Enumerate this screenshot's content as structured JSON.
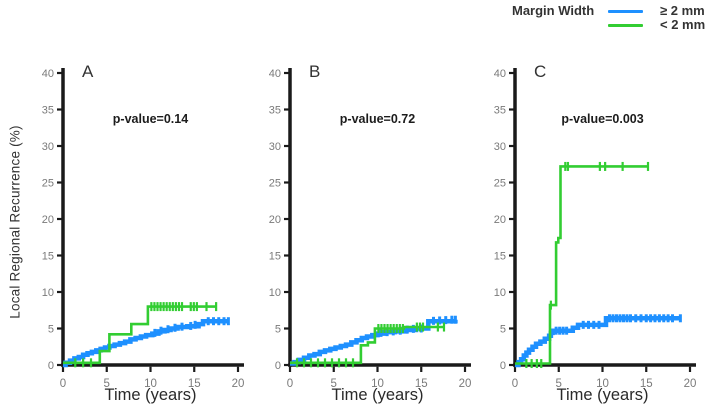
{
  "figure": {
    "background": "#ffffff"
  },
  "legend": {
    "title": "Margin Width",
    "items": [
      {
        "label": "≥ 2 mm",
        "color": "#1E90FF"
      },
      {
        "label": "< 2 mm",
        "color": "#32CD32"
      }
    ]
  },
  "axes": {
    "xlabel": "Time (years)",
    "ylabel": "Local Regional Recurrence (%)",
    "xlim": [
      0,
      20
    ],
    "ylim": [
      0,
      40
    ],
    "xticks": [
      0,
      5,
      10,
      15,
      20
    ],
    "yticks": [
      0,
      5,
      10,
      15,
      20,
      25,
      30,
      35,
      40
    ],
    "axis_color": "#1a1a1a",
    "tick_label_color": "#7a7a7a",
    "grid": false
  },
  "chart_data": [
    {
      "type": "line",
      "panel_label": "A",
      "p_value_label": "p-value=0.14",
      "series": [
        {
          "name": "≥ 2 mm",
          "color": "#1E90FF",
          "thickness": 4.5,
          "censor_half": 4,
          "censor_width": 3,
          "points": [
            [
              0,
              0
            ],
            [
              0.3,
              0.3
            ],
            [
              0.8,
              0.6
            ],
            [
              1.3,
              0.9
            ],
            [
              1.8,
              1.1
            ],
            [
              2.3,
              1.4
            ],
            [
              2.8,
              1.6
            ],
            [
              3.3,
              1.8
            ],
            [
              3.8,
              2.0
            ],
            [
              4.3,
              2.2
            ],
            [
              4.8,
              2.4
            ],
            [
              5.3,
              2.6
            ],
            [
              5.9,
              2.8
            ],
            [
              6.5,
              3.0
            ],
            [
              7.1,
              3.2
            ],
            [
              7.7,
              3.5
            ],
            [
              8.3,
              3.7
            ],
            [
              8.9,
              3.9
            ],
            [
              9.5,
              4.1
            ],
            [
              10.2,
              4.3
            ],
            [
              10.9,
              4.6
            ],
            [
              11.6,
              4.8
            ],
            [
              12.3,
              5.0
            ],
            [
              13.1,
              5.2
            ],
            [
              14.2,
              5.3
            ],
            [
              15.5,
              5.6
            ],
            [
              16.0,
              6.0
            ],
            [
              18.9,
              6.0
            ]
          ],
          "censors": [
            [
              10.5,
              4.4
            ],
            [
              11.2,
              4.7
            ],
            [
              12.0,
              4.9
            ],
            [
              12.8,
              5.1
            ],
            [
              13.6,
              5.25
            ],
            [
              14.6,
              5.35
            ],
            [
              15.1,
              5.5
            ],
            [
              16.6,
              6.0
            ],
            [
              17.2,
              6.0
            ],
            [
              17.8,
              6.0
            ],
            [
              18.4,
              6.0
            ],
            [
              18.9,
              6.0
            ]
          ]
        },
        {
          "name": "< 2 mm",
          "color": "#32CD32",
          "thickness": 2.6,
          "censor_half": 4.5,
          "censor_width": 2.2,
          "points": [
            [
              0,
              0.3
            ],
            [
              4.2,
              0.3
            ],
            [
              4.2,
              1.9
            ],
            [
              5.3,
              1.9
            ],
            [
              5.3,
              4.2
            ],
            [
              7.8,
              4.2
            ],
            [
              7.8,
              5.6
            ],
            [
              9.7,
              5.6
            ],
            [
              9.7,
              8.0
            ],
            [
              17.5,
              8.0
            ]
          ],
          "censors": [
            [
              1.4,
              0.3
            ],
            [
              2.3,
              0.3
            ],
            [
              3.2,
              0.3
            ],
            [
              10.1,
              8
            ],
            [
              10.45,
              8
            ],
            [
              10.8,
              8
            ],
            [
              11.15,
              8
            ],
            [
              11.5,
              8
            ],
            [
              11.85,
              8
            ],
            [
              12.2,
              8
            ],
            [
              12.55,
              8
            ],
            [
              12.9,
              8
            ],
            [
              13.25,
              8
            ],
            [
              13.6,
              8
            ],
            [
              14.6,
              8
            ],
            [
              14.95,
              8
            ],
            [
              15.3,
              8
            ],
            [
              16.4,
              8
            ],
            [
              17.5,
              8
            ]
          ]
        }
      ]
    },
    {
      "type": "line",
      "panel_label": "B",
      "p_value_label": "p-value=0.72",
      "series": [
        {
          "name": "≥ 2 mm",
          "color": "#1E90FF",
          "thickness": 4.5,
          "censor_half": 4,
          "censor_width": 3,
          "points": [
            [
              0,
              0.2
            ],
            [
              0.5,
              0.4
            ],
            [
              1.0,
              0.7
            ],
            [
              1.6,
              1.0
            ],
            [
              2.2,
              1.3
            ],
            [
              2.8,
              1.5
            ],
            [
              3.4,
              1.8
            ],
            [
              4.0,
              2.0
            ],
            [
              4.6,
              2.2
            ],
            [
              5.2,
              2.4
            ],
            [
              5.8,
              2.6
            ],
            [
              6.4,
              2.8
            ],
            [
              7.0,
              3.1
            ],
            [
              7.6,
              3.4
            ],
            [
              8.2,
              3.7
            ],
            [
              8.8,
              3.9
            ],
            [
              9.4,
              4.1
            ],
            [
              10.0,
              4.3
            ],
            [
              10.8,
              4.5
            ],
            [
              12.0,
              4.6
            ],
            [
              13.2,
              4.8
            ],
            [
              14.4,
              5.0
            ],
            [
              15.8,
              6.0
            ],
            [
              18.9,
              6.2
            ]
          ],
          "censors": [
            [
              10.4,
              4.4
            ],
            [
              11.1,
              4.5
            ],
            [
              11.8,
              4.6
            ],
            [
              12.6,
              4.7
            ],
            [
              13.4,
              4.85
            ],
            [
              14.1,
              4.95
            ],
            [
              15.0,
              5.0
            ],
            [
              16.4,
              6.05
            ],
            [
              17.1,
              6.1
            ],
            [
              17.8,
              6.15
            ],
            [
              18.5,
              6.2
            ],
            [
              18.9,
              6.2
            ]
          ]
        },
        {
          "name": "< 2 mm",
          "color": "#32CD32",
          "thickness": 2.6,
          "censor_half": 4.5,
          "censor_width": 2.2,
          "points": [
            [
              0,
              0.3
            ],
            [
              8.1,
              0.3
            ],
            [
              8.1,
              2.7
            ],
            [
              8.9,
              2.7
            ],
            [
              8.9,
              3.1
            ],
            [
              9.7,
              3.1
            ],
            [
              9.7,
              5.0
            ],
            [
              13.0,
              5.0
            ],
            [
              13.0,
              5.2
            ],
            [
              17.6,
              5.2
            ]
          ],
          "censors": [
            [
              0.8,
              0.3
            ],
            [
              1.6,
              0.3
            ],
            [
              2.4,
              0.3
            ],
            [
              3.2,
              0.3
            ],
            [
              4.0,
              0.3
            ],
            [
              4.8,
              0.3
            ],
            [
              5.6,
              0.3
            ],
            [
              6.4,
              0.3
            ],
            [
              7.2,
              0.3
            ],
            [
              10.1,
              5
            ],
            [
              10.45,
              5
            ],
            [
              10.8,
              5
            ],
            [
              11.15,
              5
            ],
            [
              11.5,
              5
            ],
            [
              11.85,
              5
            ],
            [
              12.2,
              5
            ],
            [
              12.55,
              5
            ],
            [
              12.9,
              5
            ],
            [
              14.5,
              5.2
            ],
            [
              14.85,
              5.2
            ],
            [
              15.2,
              5.2
            ],
            [
              16.9,
              5.2
            ],
            [
              17.6,
              5.2
            ]
          ]
        }
      ]
    },
    {
      "type": "line",
      "panel_label": "C",
      "p_value_label": "p-value=0.003",
      "series": [
        {
          "name": "≥ 2 mm",
          "color": "#1E90FF",
          "thickness": 4.5,
          "censor_half": 4,
          "censor_width": 3,
          "points": [
            [
              0,
              0
            ],
            [
              0.4,
              0.4
            ],
            [
              0.7,
              0.8
            ],
            [
              1.0,
              1.3
            ],
            [
              1.3,
              1.7
            ],
            [
              1.6,
              2.1
            ],
            [
              2.0,
              2.5
            ],
            [
              2.4,
              2.9
            ],
            [
              2.9,
              3.2
            ],
            [
              3.4,
              3.6
            ],
            [
              3.9,
              4.0
            ],
            [
              4.1,
              4.4
            ],
            [
              4.3,
              4.7
            ],
            [
              6.3,
              4.7
            ],
            [
              6.6,
              5.1
            ],
            [
              7.2,
              5.5
            ],
            [
              10.2,
              5.5
            ],
            [
              10.4,
              6.4
            ],
            [
              18.9,
              6.4
            ]
          ],
          "censors": [
            [
              4.7,
              4.7
            ],
            [
              5.1,
              4.7
            ],
            [
              5.5,
              4.7
            ],
            [
              5.9,
              4.7
            ],
            [
              7.8,
              5.5
            ],
            [
              8.4,
              5.5
            ],
            [
              9.0,
              5.5
            ],
            [
              9.6,
              5.5
            ],
            [
              10.8,
              6.4
            ],
            [
              11.2,
              6.4
            ],
            [
              11.6,
              6.4
            ],
            [
              12.0,
              6.4
            ],
            [
              12.4,
              6.4
            ],
            [
              12.8,
              6.4
            ],
            [
              13.2,
              6.4
            ],
            [
              13.8,
              6.4
            ],
            [
              14.4,
              6.4
            ],
            [
              15.0,
              6.4
            ],
            [
              15.5,
              6.4
            ],
            [
              16.0,
              6.4
            ],
            [
              16.5,
              6.4
            ],
            [
              17.0,
              6.4
            ],
            [
              17.5,
              6.4
            ],
            [
              18.0,
              6.4
            ],
            [
              18.9,
              6.4
            ]
          ]
        },
        {
          "name": "< 2 mm",
          "color": "#32CD32",
          "thickness": 2.6,
          "censor_half": 4.5,
          "censor_width": 2.2,
          "points": [
            [
              0,
              0.2
            ],
            [
              4.0,
              0.2
            ],
            [
              4.0,
              8.2
            ],
            [
              4.7,
              8.2
            ],
            [
              4.7,
              16.8
            ],
            [
              4.95,
              16.8
            ],
            [
              4.95,
              17.4
            ],
            [
              5.2,
              17.4
            ],
            [
              5.2,
              27.2
            ],
            [
              15.2,
              27.2
            ]
          ],
          "censors": [
            [
              1.3,
              0.2
            ],
            [
              1.9,
              0.2
            ],
            [
              2.5,
              0.2
            ],
            [
              3.0,
              0.2
            ],
            [
              4.1,
              8.2
            ],
            [
              5.75,
              27.2
            ],
            [
              6.05,
              27.2
            ],
            [
              9.7,
              27.2
            ],
            [
              10.3,
              27.2
            ],
            [
              12.3,
              27.2
            ],
            [
              15.2,
              27.2
            ]
          ]
        }
      ]
    }
  ]
}
